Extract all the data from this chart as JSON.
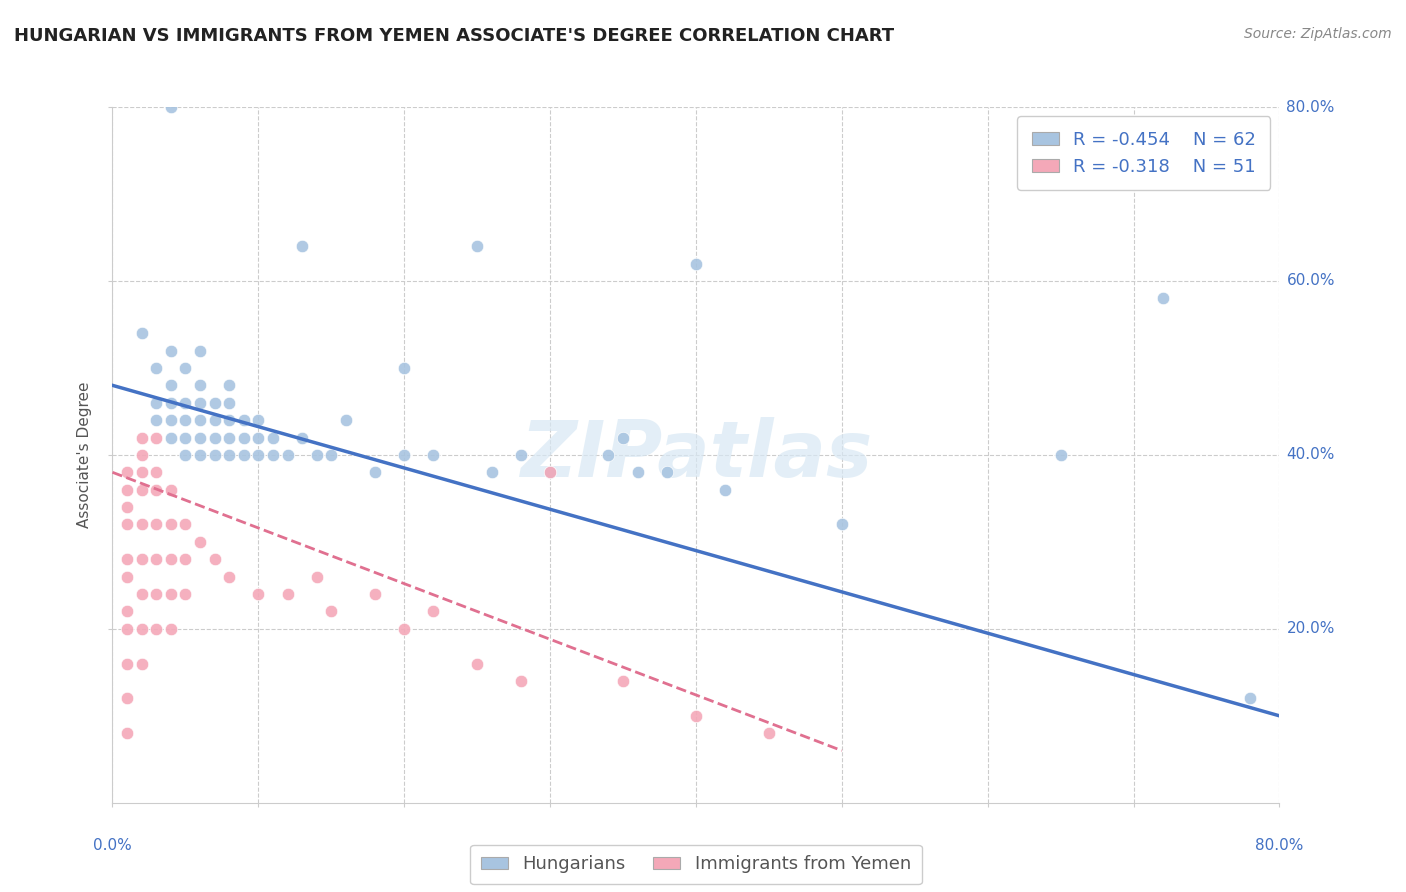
{
  "title": "HUNGARIAN VS IMMIGRANTS FROM YEMEN ASSOCIATE'S DEGREE CORRELATION CHART",
  "source": "Source: ZipAtlas.com",
  "ylabel": "Associate's Degree",
  "watermark": "ZIPatlas",
  "legend_r1": "-0.454",
  "legend_n1": "62",
  "legend_r2": "-0.318",
  "legend_n2": "51",
  "xlim": [
    0.0,
    0.8
  ],
  "ylim": [
    0.0,
    0.8
  ],
  "grid_color": "#cccccc",
  "background_color": "#ffffff",
  "blue_scatter_color": "#a8c4e0",
  "pink_scatter_color": "#f4a8b8",
  "blue_line_color": "#4472c4",
  "pink_line_color": "#e07090",
  "blue_points": [
    [
      0.02,
      0.54
    ],
    [
      0.03,
      0.5
    ],
    [
      0.03,
      0.46
    ],
    [
      0.03,
      0.44
    ],
    [
      0.04,
      0.52
    ],
    [
      0.04,
      0.48
    ],
    [
      0.04,
      0.46
    ],
    [
      0.04,
      0.44
    ],
    [
      0.04,
      0.42
    ],
    [
      0.05,
      0.5
    ],
    [
      0.05,
      0.46
    ],
    [
      0.05,
      0.44
    ],
    [
      0.05,
      0.42
    ],
    [
      0.05,
      0.4
    ],
    [
      0.06,
      0.52
    ],
    [
      0.06,
      0.48
    ],
    [
      0.06,
      0.46
    ],
    [
      0.06,
      0.44
    ],
    [
      0.06,
      0.42
    ],
    [
      0.06,
      0.4
    ],
    [
      0.07,
      0.46
    ],
    [
      0.07,
      0.44
    ],
    [
      0.07,
      0.42
    ],
    [
      0.07,
      0.4
    ],
    [
      0.08,
      0.48
    ],
    [
      0.08,
      0.46
    ],
    [
      0.08,
      0.44
    ],
    [
      0.08,
      0.42
    ],
    [
      0.08,
      0.4
    ],
    [
      0.09,
      0.44
    ],
    [
      0.09,
      0.42
    ],
    [
      0.09,
      0.4
    ],
    [
      0.1,
      0.44
    ],
    [
      0.1,
      0.42
    ],
    [
      0.1,
      0.4
    ],
    [
      0.11,
      0.42
    ],
    [
      0.11,
      0.4
    ],
    [
      0.12,
      0.4
    ],
    [
      0.13,
      0.42
    ],
    [
      0.14,
      0.4
    ],
    [
      0.15,
      0.4
    ],
    [
      0.16,
      0.44
    ],
    [
      0.18,
      0.38
    ],
    [
      0.2,
      0.4
    ],
    [
      0.22,
      0.4
    ],
    [
      0.25,
      0.64
    ],
    [
      0.26,
      0.38
    ],
    [
      0.28,
      0.4
    ],
    [
      0.3,
      0.38
    ],
    [
      0.34,
      0.4
    ],
    [
      0.38,
      0.38
    ],
    [
      0.4,
      0.62
    ],
    [
      0.5,
      0.32
    ],
    [
      0.65,
      0.4
    ],
    [
      0.72,
      0.58
    ],
    [
      0.78,
      0.12
    ],
    [
      0.04,
      0.8
    ],
    [
      0.13,
      0.64
    ],
    [
      0.2,
      0.5
    ],
    [
      0.35,
      0.42
    ],
    [
      0.36,
      0.38
    ],
    [
      0.42,
      0.36
    ]
  ],
  "pink_points": [
    [
      0.01,
      0.38
    ],
    [
      0.01,
      0.36
    ],
    [
      0.01,
      0.34
    ],
    [
      0.01,
      0.32
    ],
    [
      0.01,
      0.28
    ],
    [
      0.01,
      0.26
    ],
    [
      0.01,
      0.22
    ],
    [
      0.01,
      0.2
    ],
    [
      0.01,
      0.16
    ],
    [
      0.01,
      0.12
    ],
    [
      0.01,
      0.08
    ],
    [
      0.02,
      0.4
    ],
    [
      0.02,
      0.38
    ],
    [
      0.02,
      0.36
    ],
    [
      0.02,
      0.32
    ],
    [
      0.02,
      0.28
    ],
    [
      0.02,
      0.24
    ],
    [
      0.02,
      0.2
    ],
    [
      0.02,
      0.16
    ],
    [
      0.03,
      0.38
    ],
    [
      0.03,
      0.36
    ],
    [
      0.03,
      0.32
    ],
    [
      0.03,
      0.28
    ],
    [
      0.03,
      0.24
    ],
    [
      0.03,
      0.2
    ],
    [
      0.04,
      0.36
    ],
    [
      0.04,
      0.32
    ],
    [
      0.04,
      0.28
    ],
    [
      0.04,
      0.24
    ],
    [
      0.04,
      0.2
    ],
    [
      0.05,
      0.32
    ],
    [
      0.05,
      0.28
    ],
    [
      0.05,
      0.24
    ],
    [
      0.06,
      0.3
    ],
    [
      0.07,
      0.28
    ],
    [
      0.08,
      0.26
    ],
    [
      0.1,
      0.24
    ],
    [
      0.12,
      0.24
    ],
    [
      0.14,
      0.26
    ],
    [
      0.15,
      0.22
    ],
    [
      0.18,
      0.24
    ],
    [
      0.2,
      0.2
    ],
    [
      0.22,
      0.22
    ],
    [
      0.25,
      0.16
    ],
    [
      0.28,
      0.14
    ],
    [
      0.3,
      0.38
    ],
    [
      0.35,
      0.14
    ],
    [
      0.4,
      0.1
    ],
    [
      0.45,
      0.08
    ],
    [
      0.02,
      0.42
    ],
    [
      0.03,
      0.42
    ]
  ],
  "blue_line_x": [
    0.0,
    0.8
  ],
  "blue_line_y": [
    0.48,
    0.1
  ],
  "pink_line_x": [
    0.0,
    0.5
  ],
  "pink_line_y": [
    0.38,
    0.06
  ],
  "title_fontsize": 13,
  "axis_fontsize": 11,
  "tick_fontsize": 11,
  "legend_fontsize": 13,
  "source_fontsize": 10
}
